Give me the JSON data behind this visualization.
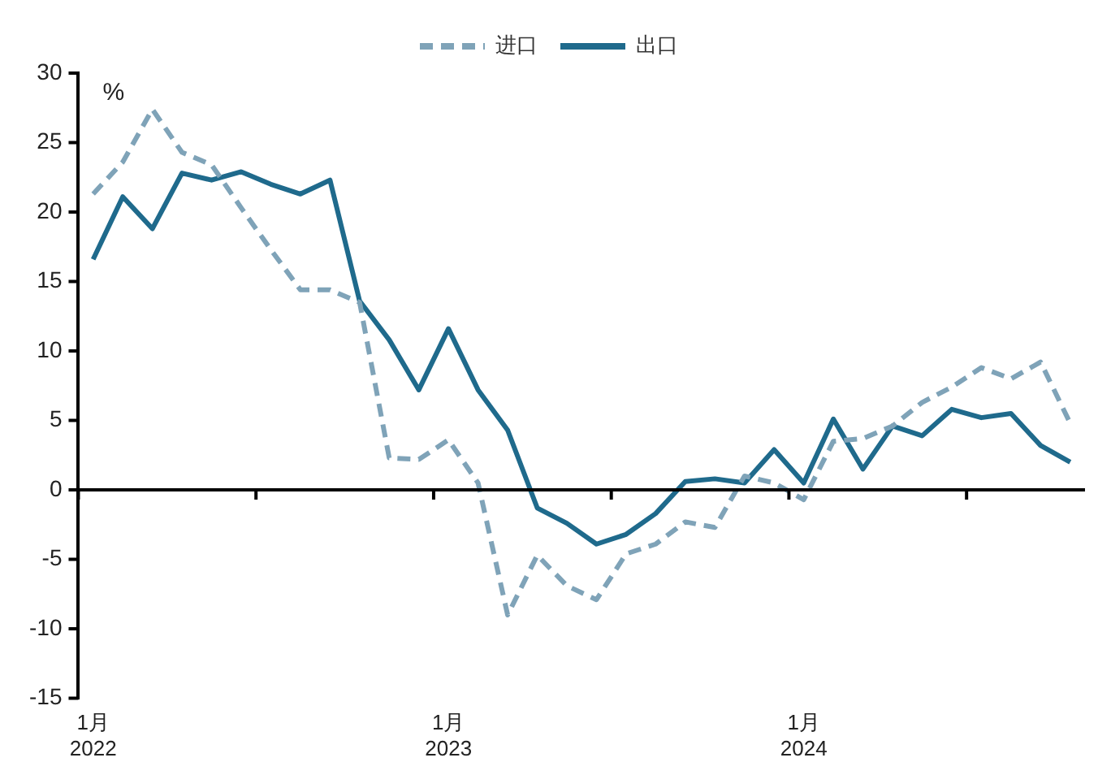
{
  "chart_data": {
    "type": "line",
    "ylabel": "%",
    "categories": [
      "1月\n2022",
      null,
      null,
      null,
      null,
      null,
      null,
      null,
      null,
      null,
      null,
      null,
      "1月\n2023",
      null,
      null,
      null,
      null,
      null,
      null,
      null,
      null,
      null,
      null,
      null,
      "1月\n2024",
      null,
      null,
      null,
      null,
      null,
      null,
      null,
      null,
      null
    ],
    "series": [
      {
        "name": "进口",
        "color": "#7fa3b8",
        "line_style": "dashed",
        "values": [
          21.3,
          23.6,
          27.4,
          24.3,
          23.4,
          20.3,
          17.3,
          14.4,
          14.4,
          13.5,
          2.3,
          2.2,
          3.6,
          0.5,
          -9.0,
          -4.7,
          -6.9,
          -7.9,
          -4.6,
          -3.9,
          -2.3,
          -2.7,
          1.0,
          0.5,
          -0.7,
          3.5,
          3.7,
          4.6,
          6.3,
          7.4,
          8.8,
          8.0,
          9.2,
          4.8
        ]
      },
      {
        "name": "出口",
        "color": "#1f6a8c",
        "line_style": "solid",
        "values": [
          16.6,
          21.1,
          18.8,
          22.8,
          22.3,
          22.9,
          22.0,
          21.3,
          22.3,
          13.6,
          10.8,
          7.2,
          11.6,
          7.2,
          4.3,
          -1.3,
          -2.4,
          -3.9,
          -3.2,
          -1.7,
          0.6,
          0.8,
          0.5,
          2.9,
          0.5,
          5.1,
          1.5,
          4.6,
          3.9,
          5.8,
          5.2,
          5.5,
          3.2,
          2.0
        ]
      }
    ],
    "ylim": [
      -15,
      30
    ],
    "yticks": [
      -15,
      -10,
      -5,
      0,
      5,
      10,
      15,
      20,
      25,
      30
    ],
    "ref_lines": [
      {
        "axis": "y",
        "value": 0,
        "color": "#000000",
        "line_style": "solid"
      }
    ],
    "grid": false,
    "legend": "top",
    "marker": "none"
  }
}
